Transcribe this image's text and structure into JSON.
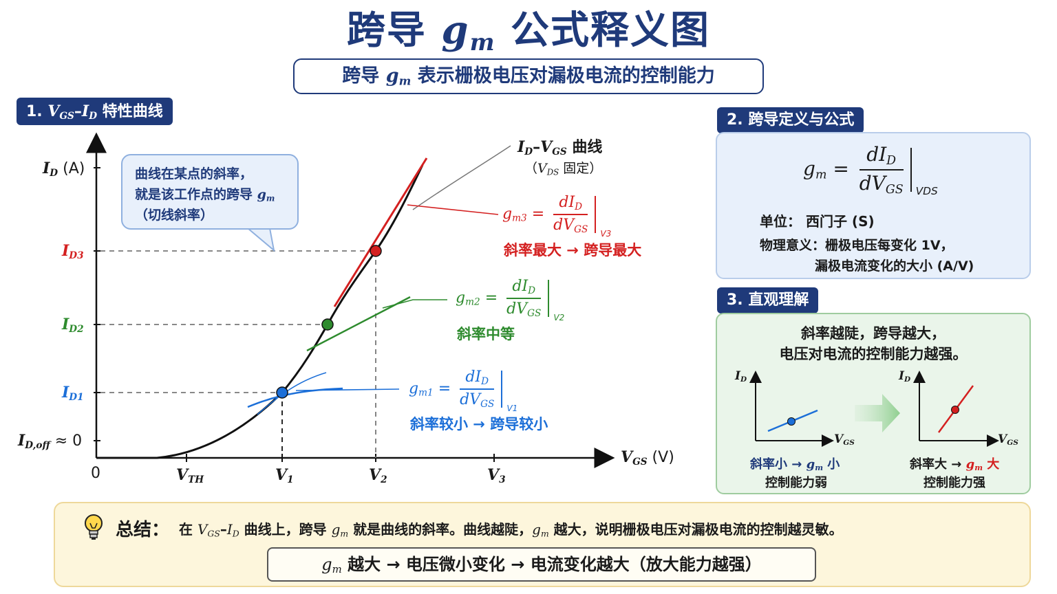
{
  "title": {
    "prefix": "跨导 ",
    "gm_main": "g",
    "gm_sub": "m",
    "suffix": " 公式释义图"
  },
  "subtitle": {
    "prefix": "跨导 ",
    "gm_main": "g",
    "gm_sub": "m",
    "suffix": " 表示栅极电压对漏极电流的控制能力"
  },
  "section1": {
    "num": "1.",
    "v": "V",
    "v_sub": "GS",
    "dash": "–",
    "i": "I",
    "i_sub": "D",
    "label": " 特性曲线"
  },
  "section2": {
    "label": "2. 跨导定义与公式"
  },
  "section3": {
    "label": "3. 直观理解"
  },
  "plot": {
    "y_axis": {
      "main": "I",
      "sub": "D",
      "unit": " (A)"
    },
    "x_axis": {
      "main": "V",
      "sub": "GS",
      "unit": " (V)"
    },
    "origin": "0",
    "x_ticks": [
      {
        "main": "V",
        "sub": "TH"
      },
      {
        "main": "V",
        "sub": "1"
      },
      {
        "main": "V",
        "sub": "2"
      },
      {
        "main": "V",
        "sub": "3"
      }
    ],
    "y_ticks": [
      {
        "main": "I",
        "sub": "D3",
        "color": "#d42020"
      },
      {
        "main": "I",
        "sub": "D2",
        "color": "#2e8b2e"
      },
      {
        "main": "I",
        "sub": "D1",
        "color": "#1c6fd8"
      }
    ],
    "ioff": {
      "main": "I",
      "sub": "D,off",
      "suffix": " ≈ 0"
    },
    "curve_label": {
      "main_i": "I",
      "sub_i": "D",
      "dash": "–",
      "main_v": "V",
      "sub_v": "GS",
      "word": " 曲线"
    },
    "curve_note": {
      "open": "（",
      "main": "V",
      "sub": "DS",
      "word": " 固定）"
    },
    "points": [
      {
        "name": "gm3",
        "color": "#d42020",
        "g_sub": "m3",
        "eval_sub": "V3",
        "note": "斜率最大 → 跨导最大"
      },
      {
        "name": "gm2",
        "color": "#2e8b2e",
        "g_sub": "m2",
        "eval_sub": "V2",
        "note": "斜率中等"
      },
      {
        "name": "gm1",
        "color": "#1c6fd8",
        "g_sub": "m1",
        "eval_sub": "V1",
        "note": "斜率较小 → 跨导较小"
      }
    ]
  },
  "callout": {
    "line1": "曲线在某点的斜率，",
    "line2_prefix": "就是该工作点的跨导 ",
    "line2_gm_main": "g",
    "line2_gm_sub": "m",
    "line3": "（切线斜率）"
  },
  "definition": {
    "g_main": "g",
    "g_sub": "m",
    "eq": "=",
    "num_main": "dI",
    "num_sub": "D",
    "den_main": "dV",
    "den_sub": "GS",
    "eval_sub": "VDS",
    "unit_label": "单位：",
    "unit_value": "西门子 (S)",
    "meaning_label": "物理意义：",
    "meaning_line1": "栅极电压每变化 1V，",
    "meaning_line2": "漏极电流变化的大小 (A/V)"
  },
  "intuition": {
    "line1": "斜率越陡，跨导越大，",
    "line2": "电压对电流的控制能力越强。",
    "left": {
      "y_main": "I",
      "y_sub": "D",
      "x_main": "V",
      "x_sub": "GS",
      "cap1_prefix": "斜率小 → ",
      "cap1_g": "g",
      "cap1_sub": "m",
      "cap1_suffix": " 小",
      "cap2": "控制能力弱"
    },
    "right": {
      "y_main": "I",
      "y_sub": "D",
      "x_main": "V",
      "x_sub": "GS",
      "cap1_prefix": "斜率大 → ",
      "cap1_g": "g",
      "cap1_sub": "m",
      "cap1_suffix": " 大",
      "cap2": "控制能力强"
    }
  },
  "summary": {
    "label": "总结：",
    "t1": "在 ",
    "v_main": "V",
    "v_sub": "GS",
    "dash": "–",
    "i_main": "I",
    "i_sub": "D",
    "t2": " 曲线上，跨导 ",
    "g_main": "g",
    "g_sub": "m",
    "t3": " 就是曲线的斜率。曲线越陡，",
    "g2_main": "g",
    "g2_sub": "m",
    "t4": " 越大，说明栅极电压对漏极电流的控制越灵敏。",
    "box_g": "g",
    "box_sub": "m",
    "box_text": " 越大 → 电压微小变化 → 电流变化越大（放大能力越强）"
  },
  "colors": {
    "navy": "#1f3a7a",
    "red": "#d42020",
    "green": "#2e8b2e",
    "blue": "#1c6fd8"
  },
  "icons": {
    "bulb": "lightbulb-icon",
    "arrow": "right-arrow-icon"
  }
}
